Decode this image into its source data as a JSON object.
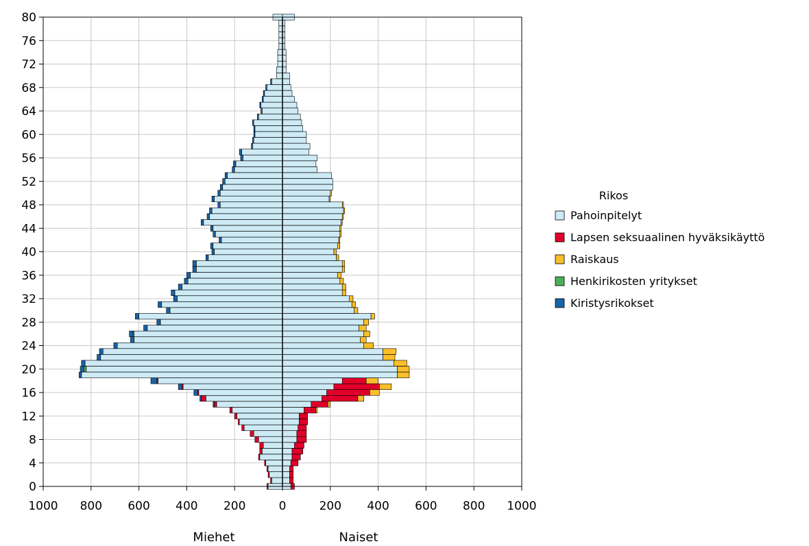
{
  "chart_data": {
    "type": "bar",
    "orientation": "horizontal-population-pyramid",
    "side_labels": {
      "left": "Miehet",
      "right": "Naiset"
    },
    "x_ticks": [
      "1000",
      "800",
      "600",
      "400",
      "200",
      "0",
      "200",
      "400",
      "600",
      "800",
      "1000"
    ],
    "y_ticks": [
      "0",
      "4",
      "8",
      "12",
      "16",
      "20",
      "24",
      "28",
      "32",
      "36",
      "40",
      "44",
      "48",
      "52",
      "56",
      "60",
      "64",
      "68",
      "72",
      "76",
      "80"
    ],
    "xlim": [
      -1000,
      1000
    ],
    "ylim": [
      0,
      80
    ],
    "grid": true,
    "legend": {
      "title": "Rikos",
      "placement": "right",
      "entries": [
        {
          "name": "Pahoinpitelyt",
          "color": "#cdeaf5"
        },
        {
          "name": "Lapsen seksuaalinen hyväksikäyttö",
          "color": "#e0002a"
        },
        {
          "name": "Raiskaus",
          "color": "#f9be2a"
        },
        {
          "name": "Henkirikosten yritykset",
          "color": "#4cae5a"
        },
        {
          "name": "Kiristysrikokset",
          "color": "#1a63a6"
        }
      ]
    },
    "ages": [
      0,
      1,
      2,
      3,
      4,
      5,
      6,
      7,
      8,
      9,
      10,
      11,
      12,
      13,
      14,
      15,
      16,
      17,
      18,
      19,
      20,
      21,
      22,
      23,
      24,
      25,
      26,
      27,
      28,
      29,
      30,
      31,
      32,
      33,
      34,
      35,
      36,
      37,
      38,
      39,
      40,
      41,
      42,
      43,
      44,
      45,
      46,
      47,
      48,
      49,
      50,
      51,
      52,
      53,
      54,
      55,
      56,
      57,
      58,
      59,
      60,
      61,
      62,
      63,
      64,
      65,
      66,
      67,
      68,
      69,
      70,
      71,
      72,
      73,
      74,
      75,
      76,
      77,
      78,
      79,
      80
    ],
    "men": {
      "Pahoinpitelyt": [
        60,
        45,
        55,
        60,
        70,
        95,
        85,
        80,
        100,
        120,
        160,
        180,
        190,
        210,
        275,
        320,
        350,
        415,
        520,
        840,
        820,
        825,
        760,
        750,
        690,
        620,
        620,
        565,
        510,
        600,
        470,
        505,
        440,
        450,
        420,
        395,
        385,
        360,
        360,
        310,
        285,
        290,
        255,
        280,
        290,
        330,
        305,
        295,
        260,
        285,
        260,
        250,
        240,
        230,
        200,
        195,
        165,
        170,
        125,
        120,
        115,
        115,
        120,
        100,
        85,
        90,
        80,
        75,
        65,
        45,
        25,
        25,
        20,
        20,
        20,
        15,
        15,
        15,
        15,
        15,
        40
      ],
      "Lapsen seksuaalinen hyväksikäyttö": [
        5,
        5,
        5,
        5,
        5,
        5,
        10,
        15,
        15,
        15,
        10,
        5,
        10,
        10,
        10,
        20,
        5,
        5,
        5,
        0,
        0,
        0,
        0,
        0,
        0,
        0,
        0,
        0,
        0,
        0,
        0,
        0,
        0,
        0,
        0,
        0,
        0,
        0,
        0,
        0,
        0,
        0,
        0,
        0,
        0,
        0,
        0,
        0,
        0,
        0,
        0,
        0,
        0,
        0,
        0,
        0,
        0,
        0,
        0,
        0,
        0,
        0,
        0,
        0,
        0,
        0,
        0,
        0,
        0,
        0,
        0,
        0,
        0,
        0,
        0,
        0,
        0,
        0,
        0,
        0,
        0
      ],
      "Raiskaus": [
        0,
        0,
        0,
        0,
        0,
        0,
        0,
        0,
        0,
        0,
        0,
        0,
        0,
        0,
        0,
        0,
        0,
        0,
        0,
        0,
        0,
        0,
        0,
        0,
        0,
        0,
        0,
        0,
        0,
        0,
        0,
        0,
        0,
        0,
        0,
        0,
        0,
        0,
        0,
        0,
        0,
        0,
        0,
        0,
        0,
        0,
        0,
        0,
        0,
        0,
        0,
        0,
        0,
        0,
        0,
        0,
        0,
        0,
        0,
        0,
        0,
        0,
        0,
        0,
        0,
        0,
        0,
        0,
        0,
        0,
        0,
        0,
        0,
        0,
        0,
        0,
        0,
        0,
        0,
        0,
        0
      ],
      "Henkirikosten yritykset": [
        0,
        0,
        0,
        0,
        0,
        0,
        0,
        0,
        0,
        0,
        0,
        0,
        0,
        0,
        0,
        0,
        0,
        0,
        0,
        0,
        10,
        0,
        0,
        0,
        0,
        0,
        5,
        0,
        0,
        0,
        0,
        0,
        0,
        0,
        0,
        0,
        0,
        0,
        0,
        0,
        0,
        0,
        0,
        0,
        0,
        0,
        0,
        0,
        0,
        0,
        0,
        0,
        0,
        0,
        0,
        0,
        0,
        0,
        0,
        0,
        0,
        0,
        0,
        0,
        0,
        0,
        0,
        0,
        0,
        0,
        0,
        0,
        0,
        0,
        0,
        0,
        0,
        0,
        0,
        0,
        0
      ],
      "Kiristysrikokset": [
        0,
        0,
        0,
        0,
        0,
        0,
        0,
        0,
        0,
        0,
        0,
        0,
        0,
        0,
        5,
        5,
        15,
        15,
        25,
        10,
        15,
        15,
        15,
        15,
        15,
        15,
        15,
        15,
        15,
        15,
        15,
        15,
        15,
        15,
        15,
        15,
        15,
        15,
        15,
        10,
        10,
        10,
        10,
        10,
        10,
        10,
        10,
        10,
        10,
        10,
        10,
        10,
        10,
        10,
        10,
        10,
        10,
        10,
        5,
        5,
        5,
        5,
        5,
        5,
        5,
        5,
        5,
        5,
        5,
        5,
        0,
        0,
        0,
        0,
        0,
        0,
        0,
        0,
        0,
        0,
        0
      ]
    },
    "women": {
      "Pahoinpitelyt": [
        35,
        30,
        30,
        30,
        35,
        40,
        40,
        50,
        60,
        60,
        65,
        70,
        70,
        90,
        120,
        165,
        185,
        215,
        250,
        480,
        480,
        465,
        420,
        420,
        340,
        325,
        340,
        320,
        340,
        370,
        300,
        290,
        280,
        250,
        250,
        240,
        230,
        250,
        250,
        225,
        215,
        230,
        235,
        240,
        240,
        245,
        250,
        255,
        250,
        195,
        200,
        210,
        210,
        205,
        145,
        140,
        145,
        110,
        115,
        100,
        100,
        85,
        80,
        75,
        65,
        60,
        50,
        40,
        35,
        30,
        30,
        15,
        15,
        15,
        15,
        10,
        10,
        10,
        10,
        10,
        50
      ],
      "Lapsen seksuaalinen hyväksikäyttö": [
        15,
        15,
        15,
        15,
        30,
        35,
        45,
        40,
        40,
        40,
        35,
        35,
        35,
        50,
        70,
        150,
        180,
        190,
        100,
        0,
        0,
        0,
        0,
        0,
        0,
        0,
        0,
        0,
        0,
        0,
        0,
        0,
        0,
        0,
        0,
        0,
        0,
        0,
        0,
        0,
        0,
        0,
        0,
        0,
        0,
        0,
        0,
        0,
        0,
        0,
        0,
        0,
        0,
        0,
        0,
        0,
        0,
        0,
        0,
        0,
        0,
        0,
        0,
        0,
        0,
        0,
        0,
        0,
        0,
        0,
        0,
        0,
        0,
        0,
        0,
        0,
        0,
        0,
        0,
        0,
        0
      ],
      "Raiskaus": [
        0,
        0,
        0,
        0,
        0,
        0,
        0,
        0,
        0,
        0,
        0,
        0,
        0,
        5,
        10,
        25,
        40,
        50,
        50,
        50,
        50,
        55,
        50,
        55,
        40,
        25,
        25,
        30,
        20,
        15,
        15,
        15,
        15,
        15,
        15,
        15,
        15,
        10,
        10,
        10,
        10,
        10,
        5,
        5,
        5,
        5,
        5,
        5,
        5,
        5,
        5,
        0,
        0,
        0,
        0,
        0,
        0,
        0,
        0,
        0,
        0,
        0,
        0,
        0,
        0,
        0,
        0,
        0,
        0,
        0,
        0,
        0,
        0,
        0,
        0,
        0,
        0,
        0,
        0,
        0,
        0
      ],
      "Henkirikosten yritykset": [
        0,
        0,
        0,
        0,
        0,
        0,
        0,
        0,
        0,
        0,
        0,
        0,
        0,
        0,
        0,
        0,
        0,
        0,
        0,
        0,
        0,
        0,
        0,
        0,
        0,
        0,
        0,
        0,
        0,
        0,
        0,
        0,
        0,
        0,
        0,
        0,
        0,
        0,
        0,
        0,
        0,
        0,
        0,
        0,
        0,
        0,
        0,
        0,
        0,
        0,
        0,
        0,
        0,
        0,
        0,
        0,
        0,
        0,
        0,
        0,
        0,
        0,
        0,
        0,
        0,
        0,
        0,
        0,
        0,
        0,
        0,
        0,
        0,
        0,
        0,
        0,
        0,
        0,
        0,
        0,
        0
      ],
      "Kiristysrikokset": [
        0,
        0,
        0,
        0,
        0,
        0,
        0,
        0,
        0,
        0,
        0,
        0,
        0,
        0,
        0,
        0,
        0,
        0,
        0,
        0,
        0,
        0,
        0,
        0,
        0,
        0,
        0,
        0,
        0,
        0,
        0,
        0,
        0,
        0,
        0,
        0,
        0,
        0,
        0,
        0,
        0,
        0,
        0,
        0,
        0,
        0,
        0,
        0,
        0,
        0,
        0,
        0,
        0,
        0,
        0,
        0,
        0,
        0,
        0,
        0,
        0,
        0,
        0,
        0,
        0,
        0,
        0,
        0,
        0,
        0,
        0,
        0,
        0,
        0,
        0,
        0,
        0,
        0,
        0,
        0,
        0
      ]
    }
  }
}
